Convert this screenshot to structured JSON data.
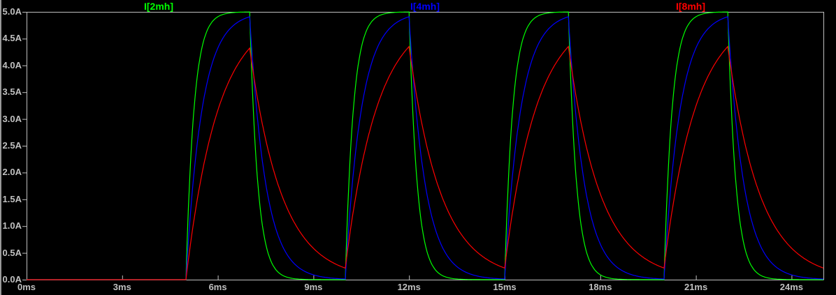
{
  "window": {
    "background": "#000000",
    "left_border_color": "#999999"
  },
  "axes": {
    "line_color": "#c0c0c0",
    "label_color": "#c0c0c0",
    "x": {
      "unit": "ms",
      "min": 0,
      "max": 25,
      "tick_values": [
        0,
        3,
        6,
        9,
        12,
        15,
        18,
        21,
        24
      ],
      "tick_labels": [
        "0ms",
        "3ms",
        "6ms",
        "9ms",
        "12ms",
        "15ms",
        "18ms",
        "21ms",
        "24ms"
      ]
    },
    "y": {
      "unit": "A",
      "min": 0,
      "max": 5,
      "tick_values": [
        5.0,
        4.5,
        4.0,
        3.5,
        3.0,
        2.5,
        2.0,
        1.5,
        1.0,
        0.5,
        0.0
      ],
      "tick_labels": [
        "5.0A",
        "4.5A",
        "4.0A",
        "3.5A",
        "3.0A",
        "2.5A",
        "2.0A",
        "1.5A",
        "1.0A",
        "0.5A",
        "0.0A"
      ]
    }
  },
  "chart_data": {
    "type": "line",
    "title": "",
    "x_unit": "ms",
    "y_unit": "A",
    "x_range": [
      0,
      25
    ],
    "y_range": [
      0,
      5
    ],
    "grid": false,
    "legend_position": "top",
    "background": "#000000",
    "series": [
      {
        "name": "I[2mh]",
        "color": "#00ff00",
        "tau_ms": 0.25,
        "peak_A": 5.0,
        "min_between_pulses_A": 0.0
      },
      {
        "name": "I[4mh]",
        "color": "#0000ff",
        "tau_ms": 0.5,
        "peak_A": 4.9,
        "min_between_pulses_A": 0.05
      },
      {
        "name": "I[8mh]",
        "color": "#ff0000",
        "tau_ms": 1.0,
        "peak_A": 4.35,
        "min_between_pulses_A": 0.3
      }
    ],
    "stimulus": {
      "type": "pulse",
      "level_A": 5,
      "first_rise_ms": 5,
      "on_time_ms": 2,
      "period_ms": 5,
      "pulse_count": 4
    },
    "behavior": "RL charge/discharge: each current rises exponentially toward 5A while the pulse is on (5-7ms, 10-12ms, 15-17ms, 20-22ms) and decays exponentially toward 0A while off; time constants scale with inductance (2mH fastest, 8mH slowest). All traces are 0A from 0 to 5ms."
  }
}
